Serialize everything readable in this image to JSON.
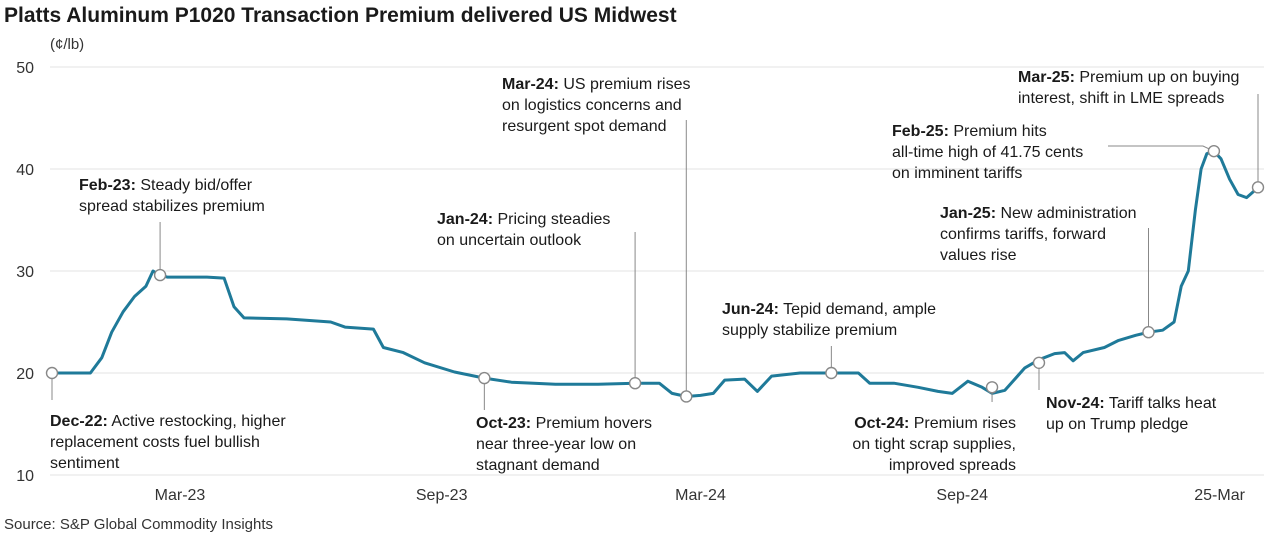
{
  "title": "Platts Aluminum P1020 Transaction Premium delivered US Midwest",
  "unit_label": "(¢/lb)",
  "source": "Source: S&P Global Commodity Insights",
  "chart_data": {
    "type": "line",
    "ylim": [
      10,
      50
    ],
    "yticks": [
      10,
      20,
      30,
      40,
      50
    ],
    "grid": true,
    "color": "#1f7a99",
    "xticks": [
      {
        "date": "2023-03-01",
        "label": "Mar-23"
      },
      {
        "date": "2023-09-01",
        "label": "Sep-23"
      },
      {
        "date": "2024-03-01",
        "label": "Mar-24"
      },
      {
        "date": "2024-09-01",
        "label": "Sep-24"
      },
      {
        "date": "2025-03-01",
        "label": "25-Mar"
      }
    ],
    "points": [
      [
        "2022-12-01",
        20.0
      ],
      [
        "2022-12-15",
        20.0
      ],
      [
        "2022-12-28",
        20.0
      ],
      [
        "2023-01-05",
        21.5
      ],
      [
        "2023-01-12",
        24.0
      ],
      [
        "2023-01-20",
        26.0
      ],
      [
        "2023-01-28",
        27.5
      ],
      [
        "2023-02-05",
        28.5
      ],
      [
        "2023-02-10",
        30.0
      ],
      [
        "2023-02-15",
        29.6
      ],
      [
        "2023-02-20",
        29.4
      ],
      [
        "2023-03-20",
        29.4
      ],
      [
        "2023-04-01",
        29.3
      ],
      [
        "2023-04-08",
        26.5
      ],
      [
        "2023-04-15",
        25.4
      ],
      [
        "2023-05-15",
        25.3
      ],
      [
        "2023-06-15",
        25.0
      ],
      [
        "2023-06-25",
        24.5
      ],
      [
        "2023-07-15",
        24.3
      ],
      [
        "2023-07-22",
        22.5
      ],
      [
        "2023-08-05",
        22.0
      ],
      [
        "2023-08-20",
        21.0
      ],
      [
        "2023-09-10",
        20.1
      ],
      [
        "2023-10-01",
        19.5
      ],
      [
        "2023-10-20",
        19.1
      ],
      [
        "2023-11-20",
        18.9
      ],
      [
        "2023-12-20",
        18.9
      ],
      [
        "2024-01-15",
        19.0
      ],
      [
        "2024-02-01",
        19.0
      ],
      [
        "2024-02-10",
        18.0
      ],
      [
        "2024-02-20",
        17.7
      ],
      [
        "2024-03-01",
        17.8
      ],
      [
        "2024-03-10",
        18.0
      ],
      [
        "2024-03-18",
        19.3
      ],
      [
        "2024-04-01",
        19.4
      ],
      [
        "2024-04-10",
        18.2
      ],
      [
        "2024-04-20",
        19.7
      ],
      [
        "2024-05-10",
        20.0
      ],
      [
        "2024-06-20",
        20.0
      ],
      [
        "2024-06-28",
        19.0
      ],
      [
        "2024-07-15",
        19.0
      ],
      [
        "2024-08-01",
        18.6
      ],
      [
        "2024-08-15",
        18.2
      ],
      [
        "2024-08-25",
        18.0
      ],
      [
        "2024-09-05",
        19.2
      ],
      [
        "2024-09-15",
        18.6
      ],
      [
        "2024-09-22",
        18.0
      ],
      [
        "2024-10-01",
        18.3
      ],
      [
        "2024-10-15",
        20.5
      ],
      [
        "2024-10-25",
        21.3
      ],
      [
        "2024-11-05",
        21.9
      ],
      [
        "2024-11-12",
        22.0
      ],
      [
        "2024-11-18",
        21.2
      ],
      [
        "2024-11-25",
        22.0
      ],
      [
        "2024-12-10",
        22.5
      ],
      [
        "2024-12-20",
        23.2
      ],
      [
        "2025-01-01",
        23.7
      ],
      [
        "2025-01-10",
        24.0
      ],
      [
        "2025-01-20",
        24.2
      ],
      [
        "2025-01-28",
        25.0
      ],
      [
        "2025-02-02",
        28.5
      ],
      [
        "2025-02-07",
        30.0
      ],
      [
        "2025-02-12",
        36.0
      ],
      [
        "2025-02-16",
        40.0
      ],
      [
        "2025-02-20",
        41.5
      ],
      [
        "2025-02-25",
        41.75
      ],
      [
        "2025-03-02",
        41.0
      ],
      [
        "2025-03-08",
        39.0
      ],
      [
        "2025-03-14",
        37.5
      ],
      [
        "2025-03-20",
        37.2
      ],
      [
        "2025-03-25",
        37.8
      ],
      [
        "2025-03-28",
        38.2
      ]
    ],
    "annotations": [
      {
        "date": "2022-12-01",
        "value": 20.0,
        "bold": "Dec-22:",
        "lines": [
          " Active restocking, higher",
          "replacement costs fuel bullish",
          "sentiment"
        ],
        "pos": "below"
      },
      {
        "date": "2023-02-15",
        "value": 29.6,
        "bold": "Feb-23:",
        "lines": [
          " Steady bid/offer",
          "spread stabilizes premium"
        ],
        "pos": "above"
      },
      {
        "date": "2023-10-01",
        "value": 19.5,
        "bold": "Oct-23:",
        "lines": [
          " Premium hovers",
          "near three-year low on",
          "stagnant demand"
        ],
        "pos": "below"
      },
      {
        "date": "2024-01-15",
        "value": 19.0,
        "bold": "Jan-24:",
        "lines": [
          " Pricing steadies",
          "on uncertain outlook"
        ],
        "pos": "above"
      },
      {
        "date": "2024-02-20",
        "value": 17.7,
        "bold": "Mar-24:",
        "lines": [
          " US premium rises",
          "on logistics concerns and",
          "resurgent spot demand"
        ],
        "pos": "above"
      },
      {
        "date": "2024-06-01",
        "value": 20.0,
        "bold": "Jun-24:",
        "lines": [
          " Tepid demand, ample",
          "supply stabilize premium"
        ],
        "pos": "above"
      },
      {
        "date": "2024-09-22",
        "value": 18.6,
        "bold": "Oct-24:",
        "lines": [
          " Premium rises",
          "on tight scrap supplies,",
          "improved spreads"
        ],
        "pos": "below"
      },
      {
        "date": "2024-10-25",
        "value": 21.0,
        "bold": "Nov-24:",
        "lines": [
          " Tariff talks heat",
          "up on Trump pledge"
        ],
        "pos": "below"
      },
      {
        "date": "2025-01-10",
        "value": 24.0,
        "bold": "Jan-25:",
        "lines": [
          " New administration",
          "confirms tariffs, forward",
          "values rise"
        ],
        "pos": "above"
      },
      {
        "date": "2025-02-25",
        "value": 41.75,
        "bold": "Feb-25:",
        "lines": [
          " Premium hits",
          "all-time high of 41.75 cents",
          "on imminent tariffs"
        ],
        "pos": "left"
      },
      {
        "date": "2025-03-28",
        "value": 38.2,
        "bold": "Mar-25:",
        "lines": [
          " Premium up on buying",
          "interest, shift in LME spreads"
        ],
        "pos": "above"
      }
    ]
  }
}
